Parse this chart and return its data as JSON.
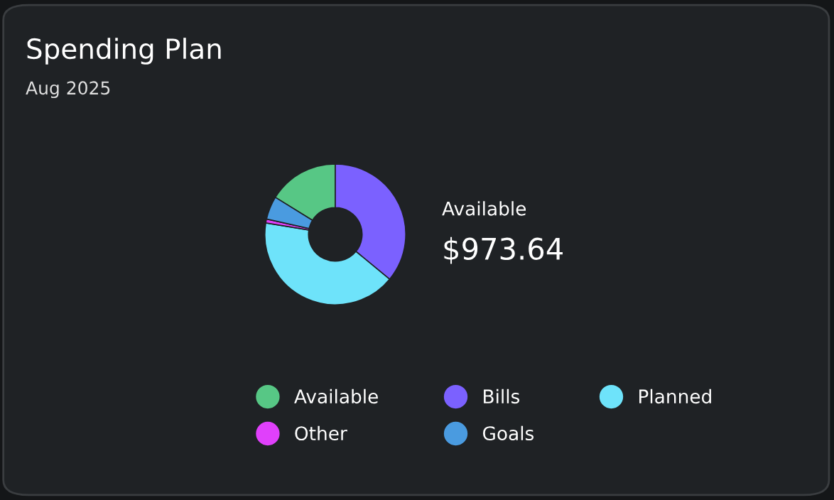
{
  "chart_data": {
    "type": "donut",
    "title": "Spending Plan",
    "subtitle": "Aug 2025",
    "categories": [
      "Available",
      "Bills",
      "Planned",
      "Other",
      "Goals"
    ],
    "values": [
      16.2,
      36,
      41.6,
      0.9,
      5.3
    ],
    "colors": [
      "#57c785",
      "#7b61ff",
      "#6ee3fa",
      "#e040fb",
      "#4a9be0"
    ],
    "annotations": [
      "Available",
      "$973.64"
    ],
    "legend": "bottom"
  }
}
